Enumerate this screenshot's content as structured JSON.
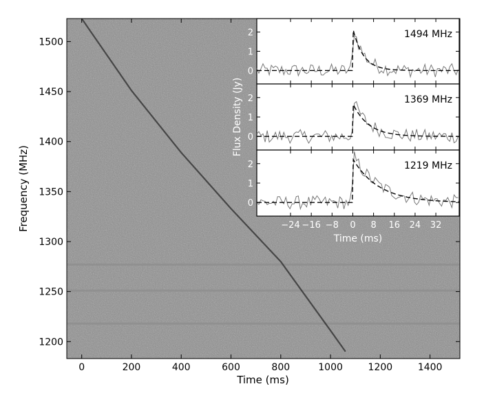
{
  "chart_data": [
    {
      "type": "heatmap",
      "title": "",
      "xlabel": "Time (ms)",
      "ylabel": "Frequency (MHz)",
      "xlim": [
        -60,
        1520
      ],
      "ylim": [
        1183,
        1523
      ],
      "xticks": [
        0,
        200,
        400,
        600,
        800,
        1000,
        1200,
        1400
      ],
      "yticks": [
        1200,
        1250,
        1300,
        1350,
        1400,
        1450,
        1500
      ],
      "grid": false,
      "background_gray": "#8a8a8a",
      "dispersion_track": {
        "description_points": [
          {
            "time_ms": 0,
            "freq_mhz": 1523
          },
          {
            "time_ms": 200,
            "freq_mhz": 1451
          },
          {
            "time_ms": 400,
            "freq_mhz": 1389
          },
          {
            "time_ms": 600,
            "freq_mhz": 1333
          },
          {
            "time_ms": 800,
            "freq_mhz": 1280
          },
          {
            "time_ms": 1000,
            "freq_mhz": 1211
          },
          {
            "time_ms": 1060,
            "freq_mhz": 1190
          }
        ]
      },
      "masked_channels_mhz": [
        1277,
        1251,
        1218
      ]
    },
    {
      "type": "line",
      "title": "",
      "xlabel": "Time (ms)",
      "ylabel": "Flux Density (Jy)",
      "xlim": [
        -37,
        41
      ],
      "ylim": [
        -0.7,
        2.7
      ],
      "xticks": [
        -24,
        -16,
        -8,
        0,
        8,
        16,
        24,
        32
      ],
      "yticks": [
        0,
        1,
        2
      ],
      "panels": [
        {
          "label": "1494 MHz",
          "peak_jy": 2.4,
          "model_peak_jy": 2.2,
          "decay_ms": 4
        },
        {
          "label": "1369 MHz",
          "peak_jy": 1.85,
          "model_peak_jy": 1.7,
          "decay_ms": 6
        },
        {
          "label": "1219 MHz",
          "peak_jy": 2.45,
          "model_peak_jy": 2.25,
          "decay_ms": 10
        }
      ],
      "series": [
        {
          "style": "solid-gray",
          "kind": "data"
        },
        {
          "style": "dashed-black",
          "kind": "model"
        }
      ]
    }
  ]
}
